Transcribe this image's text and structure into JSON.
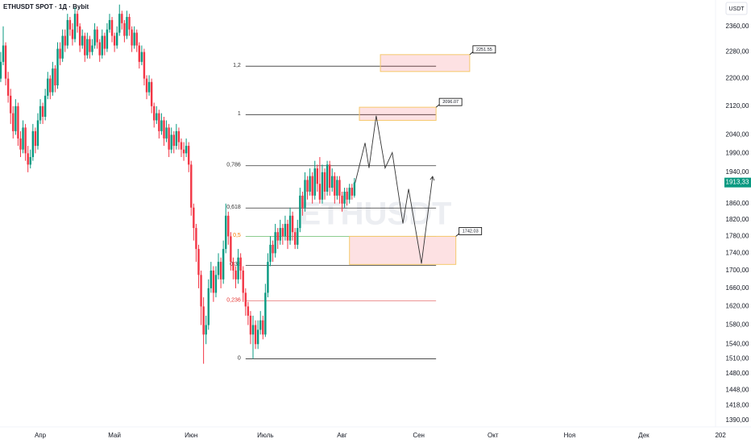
{
  "chart_data": {
    "type": "candlestick",
    "title": "ETHUSDT SPOT · 1Д · Bybit",
    "currency_button": "USDT",
    "watermark": "ETHUSDT",
    "log_scale": true,
    "up_color": "#089981",
    "down_color": "#f23645",
    "ylim": [
      1378,
      2445
    ],
    "xlim": [
      -16.3,
      273
    ],
    "yticks": [
      {
        "value": 2360,
        "label": "2360,00"
      },
      {
        "value": 2280,
        "label": "2280,00"
      },
      {
        "value": 2200,
        "label": "2200,00"
      },
      {
        "value": 2120,
        "label": "2120,00"
      },
      {
        "value": 2040,
        "label": "2040,00"
      },
      {
        "value": 1990,
        "label": "1990,00"
      },
      {
        "value": 1940,
        "label": "1940,00"
      },
      {
        "value": 1860,
        "label": "1860,00"
      },
      {
        "value": 1820,
        "label": "1820,00"
      },
      {
        "value": 1780,
        "label": "1780,00"
      },
      {
        "value": 1740,
        "label": "1740,00"
      },
      {
        "value": 1700,
        "label": "1700,00"
      },
      {
        "value": 1660,
        "label": "1660,00"
      },
      {
        "value": 1620,
        "label": "1620,00"
      },
      {
        "value": 1580,
        "label": "1580,00"
      },
      {
        "value": 1540,
        "label": "1540,00"
      },
      {
        "value": 1510,
        "label": "1510,00"
      },
      {
        "value": 1480,
        "label": "1480,00"
      },
      {
        "value": 1448,
        "label": "1448,00"
      },
      {
        "value": 1418,
        "label": "1418,00"
      },
      {
        "value": 1390,
        "label": "1390,00"
      }
    ],
    "xticks": [
      {
        "value": 0,
        "label": "Апр"
      },
      {
        "value": 30,
        "label": "Май"
      },
      {
        "value": 61,
        "label": "Июн"
      },
      {
        "value": 91,
        "label": "Июль"
      },
      {
        "value": 122,
        "label": "Авг"
      },
      {
        "value": 153,
        "label": "Сен"
      },
      {
        "value": 183,
        "label": "Окт"
      },
      {
        "value": 214,
        "label": "Ноя"
      },
      {
        "value": 244,
        "label": "Дек"
      },
      {
        "value": 275,
        "label": "202"
      }
    ],
    "last_price": {
      "value": 1913.33,
      "label": "1913,33"
    },
    "x": [
      -16,
      -15,
      -14,
      -13,
      -12,
      -11,
      -10,
      -9,
      -8,
      -7,
      -6,
      -5,
      -4,
      -3,
      -2,
      -1,
      0,
      1,
      2,
      3,
      4,
      5,
      6,
      7,
      8,
      9,
      10,
      11,
      12,
      13,
      14,
      15,
      16,
      17,
      18,
      19,
      20,
      21,
      22,
      23,
      24,
      25,
      26,
      27,
      28,
      29,
      30,
      31,
      32,
      33,
      34,
      35,
      36,
      37,
      38,
      39,
      40,
      41,
      42,
      43,
      44,
      45,
      46,
      47,
      48,
      49,
      50,
      51,
      52,
      53,
      54,
      55,
      56,
      57,
      58,
      59,
      60,
      61,
      62,
      63,
      64,
      65,
      66,
      67,
      68,
      69,
      70,
      71,
      72,
      73,
      74,
      75,
      76,
      77,
      78,
      79,
      80,
      81,
      82,
      83,
      84,
      85,
      86,
      87,
      88,
      89,
      90,
      91,
      92,
      93,
      94,
      95,
      96,
      97,
      98,
      99,
      100,
      101,
      102,
      103,
      104,
      105,
      106,
      107,
      108,
      109,
      110,
      111,
      112,
      113,
      114,
      115,
      116,
      117,
      118,
      119,
      120,
      121,
      122,
      123,
      124,
      125,
      126,
      127
    ],
    "ohlc": [
      [
        2200,
        2280,
        2190,
        2250
      ],
      [
        2250,
        2360,
        2240,
        2300
      ],
      [
        2300,
        2310,
        2180,
        2200
      ],
      [
        2200,
        2220,
        2130,
        2150
      ],
      [
        2150,
        2170,
        2070,
        2100
      ],
      [
        2100,
        2120,
        2030,
        2050
      ],
      [
        2050,
        2140,
        2040,
        2120
      ],
      [
        2120,
        2130,
        2010,
        2030
      ],
      [
        2030,
        2050,
        1980,
        2000
      ],
      [
        2000,
        2080,
        1990,
        2060
      ],
      [
        2060,
        2070,
        1970,
        1990
      ],
      [
        1990,
        2010,
        1940,
        1960
      ],
      [
        1960,
        2000,
        1950,
        1980
      ],
      [
        1980,
        2070,
        1970,
        2050
      ],
      [
        2050,
        2060,
        1990,
        2010
      ],
      [
        2010,
        2100,
        2000,
        2080
      ],
      [
        2080,
        2140,
        2070,
        2120
      ],
      [
        2120,
        2130,
        2070,
        2090
      ],
      [
        2090,
        2170,
        2080,
        2150
      ],
      [
        2150,
        2220,
        2140,
        2200
      ],
      [
        2200,
        2210,
        2140,
        2160
      ],
      [
        2160,
        2250,
        2150,
        2230
      ],
      [
        2230,
        2240,
        2160,
        2180
      ],
      [
        2180,
        2310,
        2170,
        2290
      ],
      [
        2290,
        2310,
        2240,
        2260
      ],
      [
        2260,
        2350,
        2250,
        2330
      ],
      [
        2330,
        2350,
        2280,
        2300
      ],
      [
        2300,
        2400,
        2290,
        2380
      ],
      [
        2380,
        2390,
        2330,
        2350
      ],
      [
        2350,
        2370,
        2300,
        2320
      ],
      [
        2320,
        2420,
        2310,
        2400
      ],
      [
        2400,
        2410,
        2340,
        2360
      ],
      [
        2360,
        2370,
        2280,
        2300
      ],
      [
        2300,
        2350,
        2290,
        2330
      ],
      [
        2330,
        2340,
        2250,
        2270
      ],
      [
        2270,
        2340,
        2260,
        2320
      ],
      [
        2320,
        2330,
        2260,
        2280
      ],
      [
        2280,
        2320,
        2270,
        2300
      ],
      [
        2300,
        2370,
        2290,
        2350
      ],
      [
        2350,
        2360,
        2290,
        2310
      ],
      [
        2310,
        2320,
        2250,
        2270
      ],
      [
        2270,
        2350,
        2260,
        2330
      ],
      [
        2330,
        2340,
        2270,
        2290
      ],
      [
        2290,
        2370,
        2280,
        2350
      ],
      [
        2350,
        2400,
        2340,
        2380
      ],
      [
        2380,
        2390,
        2310,
        2330
      ],
      [
        2330,
        2340,
        2280,
        2300
      ],
      [
        2300,
        2360,
        2290,
        2340
      ],
      [
        2340,
        2430,
        2330,
        2400
      ],
      [
        2400,
        2410,
        2350,
        2370
      ],
      [
        2370,
        2380,
        2310,
        2330
      ],
      [
        2330,
        2410,
        2320,
        2390
      ],
      [
        2390,
        2400,
        2330,
        2350
      ],
      [
        2350,
        2360,
        2280,
        2300
      ],
      [
        2300,
        2360,
        2290,
        2340
      ],
      [
        2340,
        2350,
        2280,
        2300
      ],
      [
        2300,
        2310,
        2230,
        2250
      ],
      [
        2250,
        2300,
        2240,
        2280
      ],
      [
        2280,
        2290,
        2180,
        2200
      ],
      [
        2200,
        2210,
        2140,
        2160
      ],
      [
        2160,
        2210,
        2150,
        2190
      ],
      [
        2190,
        2200,
        2100,
        2120
      ],
      [
        2120,
        2130,
        2060,
        2080
      ],
      [
        2080,
        2120,
        2070,
        2100
      ],
      [
        2100,
        2110,
        2030,
        2050
      ],
      [
        2050,
        2100,
        2040,
        2080
      ],
      [
        2080,
        2090,
        2010,
        2030
      ],
      [
        2030,
        2080,
        2020,
        2060
      ],
      [
        2060,
        2070,
        1980,
        2000
      ],
      [
        2000,
        2060,
        1990,
        2040
      ],
      [
        2040,
        2050,
        1990,
        2010
      ],
      [
        2010,
        2070,
        2000,
        2050
      ],
      [
        2050,
        2060,
        2000,
        2020
      ],
      [
        2020,
        2030,
        1980,
        2000
      ],
      [
        2000,
        2020,
        1970,
        1990
      ],
      [
        1990,
        2030,
        1980,
        2010
      ],
      [
        2010,
        2020,
        1940,
        1960
      ],
      [
        1960,
        1970,
        1830,
        1850
      ],
      [
        1850,
        1860,
        1770,
        1800
      ],
      [
        1800,
        1810,
        1720,
        1750
      ],
      [
        1750,
        1760,
        1660,
        1690
      ],
      [
        1690,
        1700,
        1580,
        1620
      ],
      [
        1620,
        1640,
        1500,
        1560
      ],
      [
        1560,
        1600,
        1540,
        1580
      ],
      [
        1580,
        1680,
        1570,
        1660
      ],
      [
        1660,
        1720,
        1650,
        1700
      ],
      [
        1700,
        1710,
        1630,
        1650
      ],
      [
        1650,
        1710,
        1640,
        1690
      ],
      [
        1690,
        1740,
        1680,
        1720
      ],
      [
        1720,
        1730,
        1660,
        1680
      ],
      [
        1680,
        1770,
        1670,
        1750
      ],
      [
        1750,
        1860,
        1740,
        1830
      ],
      [
        1830,
        1840,
        1760,
        1780
      ],
      [
        1780,
        1790,
        1700,
        1720
      ],
      [
        1720,
        1730,
        1680,
        1700
      ],
      [
        1700,
        1710,
        1660,
        1680
      ],
      [
        1680,
        1750,
        1670,
        1730
      ],
      [
        1730,
        1740,
        1680,
        1700
      ],
      [
        1700,
        1710,
        1630,
        1650
      ],
      [
        1650,
        1660,
        1600,
        1620
      ],
      [
        1620,
        1630,
        1580,
        1600
      ],
      [
        1600,
        1610,
        1540,
        1560
      ],
      [
        1560,
        1600,
        1510,
        1580
      ],
      [
        1580,
        1590,
        1530,
        1540
      ],
      [
        1540,
        1590,
        1530,
        1570
      ],
      [
        1570,
        1610,
        1560,
        1590
      ],
      [
        1590,
        1600,
        1550,
        1560
      ],
      [
        1560,
        1670,
        1555,
        1650
      ],
      [
        1650,
        1740,
        1640,
        1720
      ],
      [
        1720,
        1780,
        1710,
        1760
      ],
      [
        1760,
        1770,
        1720,
        1740
      ],
      [
        1740,
        1810,
        1730,
        1790
      ],
      [
        1790,
        1800,
        1750,
        1770
      ],
      [
        1770,
        1820,
        1760,
        1800
      ],
      [
        1800,
        1810,
        1760,
        1780
      ],
      [
        1780,
        1830,
        1770,
        1810
      ],
      [
        1810,
        1820,
        1750,
        1770
      ],
      [
        1770,
        1850,
        1760,
        1830
      ],
      [
        1830,
        1840,
        1770,
        1790
      ],
      [
        1790,
        1800,
        1750,
        1760
      ],
      [
        1760,
        1820,
        1750,
        1800
      ],
      [
        1800,
        1900,
        1790,
        1880
      ],
      [
        1880,
        1890,
        1830,
        1850
      ],
      [
        1850,
        1940,
        1840,
        1920
      ],
      [
        1920,
        1930,
        1870,
        1890
      ],
      [
        1890,
        1950,
        1880,
        1930
      ],
      [
        1930,
        1940,
        1860,
        1880
      ],
      [
        1880,
        1970,
        1870,
        1950
      ],
      [
        1950,
        1960,
        1890,
        1910
      ],
      [
        1910,
        1980,
        1860,
        1870
      ],
      [
        1870,
        1960,
        1860,
        1940
      ],
      [
        1940,
        1950,
        1870,
        1890
      ],
      [
        1890,
        1970,
        1880,
        1960
      ],
      [
        1960,
        1970,
        1880,
        1900
      ],
      [
        1900,
        1950,
        1890,
        1930
      ],
      [
        1930,
        1940,
        1860,
        1880
      ],
      [
        1880,
        1930,
        1870,
        1920
      ],
      [
        1920,
        1930,
        1860,
        1880
      ],
      [
        1880,
        1890,
        1840,
        1860
      ],
      [
        1860,
        1900,
        1850,
        1890
      ],
      [
        1890,
        1900,
        1855,
        1870
      ],
      [
        1870,
        1910,
        1860,
        1900
      ],
      [
        1900,
        1910,
        1870,
        1880
      ],
      [
        1880,
        1925,
        1875,
        1913.33
      ]
    ],
    "fib": {
      "x": [
        83,
        160
      ],
      "levels": [
        {
          "label": "1,2",
          "price": 2237,
          "color": "#333333",
          "label_color": "#333333"
        },
        {
          "label": "1",
          "price": 2096.07,
          "color": "#333333",
          "label_color": "#333333"
        },
        {
          "label": "0,786",
          "price": 1957,
          "color": "#333333",
          "label_color": "#333333"
        },
        {
          "label": "0,618",
          "price": 1849,
          "color": "#333333",
          "label_color": "#333333"
        },
        {
          "label": "0,5",
          "price": 1780,
          "color": "#66bb6a",
          "label_color": "#f57c00"
        },
        {
          "label": "0,38",
          "price": 1712,
          "color": "#333333",
          "label_color": "#333333"
        },
        {
          "label": "0,236",
          "price": 1632,
          "color": "#e57373",
          "label_color": "#e53935"
        },
        {
          "label": "0",
          "price": 1510,
          "color": "#333333",
          "label_color": "#333333"
        }
      ]
    },
    "zones": [
      {
        "label": "2251.55",
        "x": [
          137.5,
          173.6
        ],
        "price": [
          2272,
          2221
        ]
      },
      {
        "label": "2096.07",
        "x": [
          129,
          160
        ],
        "price": [
          2117,
          2080
        ]
      },
      {
        "label": "1742.03",
        "x": [
          125,
          168
        ],
        "price": [
          1780,
          1714
        ]
      }
    ],
    "projection": {
      "x": [
        127,
        131.3,
        132.9,
        135.8,
        139.4,
        142.3,
        146.6,
        148.9,
        154.1,
        158.6
      ],
      "values": [
        1905,
        2018,
        1951,
        2093,
        1951,
        1992,
        1811,
        1897,
        1716,
        1929
      ]
    }
  }
}
